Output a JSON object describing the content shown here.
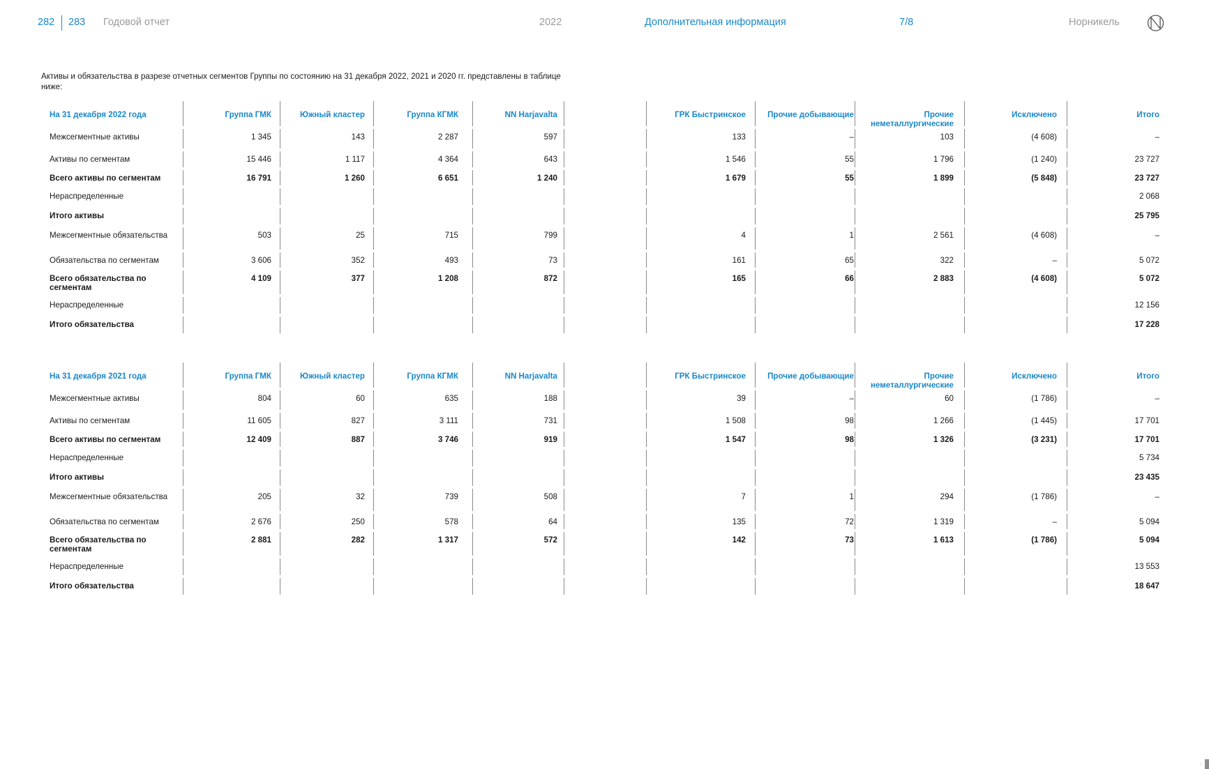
{
  "header": {
    "page_left": "282",
    "page_right": "283",
    "report": "Годовой отчет",
    "year": "2022",
    "section": "Дополнительная информация",
    "section_page": "7/8",
    "brand": "Норникель"
  },
  "intro": "Активы и обязательства в разрезе отчетных сегментов Группы по состоянию на 31 декабря 2022, 2021 и 2020 гг. представлены в таблице ниже:",
  "columns": [
    "Группа ГМК",
    "Южный кластер",
    "Группа КГМК",
    "NN Harjavalta",
    "",
    "ГРК Быстринское",
    "Прочие добывающие",
    "Прочие неметаллургические",
    "Исключено",
    "Итого"
  ],
  "tables": [
    {
      "title": "На 31 декабря 2022 года",
      "rows": [
        {
          "label": "Межсегментные активы",
          "bold": false,
          "values": [
            "1 345",
            "143",
            "2 287",
            "597",
            "",
            "133",
            "–",
            "103",
            "(4 608)",
            "–"
          ]
        },
        {
          "label": "Активы по сегментам",
          "bold": false,
          "values": [
            "15 446",
            "1 117",
            "4 364",
            "643",
            "",
            "1 546",
            "55",
            "1 796",
            "(1 240)",
            "23 727"
          ]
        },
        {
          "label": "Всего активы по сегментам",
          "bold": true,
          "values": [
            "16 791",
            "1 260",
            "6 651",
            "1 240",
            "",
            "1 679",
            "55",
            "1 899",
            "(5 848)",
            "23 727"
          ]
        },
        {
          "label": "Нераспределенные",
          "bold": false,
          "values": [
            "",
            "",
            "",
            "",
            "",
            "",
            "",
            "",
            "",
            "2 068"
          ]
        },
        {
          "label": "Итого активы",
          "bold": true,
          "values": [
            "",
            "",
            "",
            "",
            "",
            "",
            "",
            "",
            "",
            "25 795"
          ]
        },
        {
          "label": "Межсегментные обязательства",
          "bold": false,
          "values": [
            "503",
            "25",
            "715",
            "799",
            "",
            "4",
            "1",
            "2 561",
            "(4 608)",
            "–"
          ]
        },
        {
          "label": "Обязательства по сегментам",
          "bold": false,
          "values": [
            "3 606",
            "352",
            "493",
            "73",
            "",
            "161",
            "65",
            "322",
            "–",
            "5 072"
          ]
        },
        {
          "label": "Всего обязательства по сегментам",
          "bold": true,
          "values": [
            "4 109",
            "377",
            "1 208",
            "872",
            "",
            "165",
            "66",
            "2 883",
            "(4 608)",
            "5 072"
          ]
        },
        {
          "label": "Нераспределенные",
          "bold": false,
          "values": [
            "",
            "",
            "",
            "",
            "",
            "",
            "",
            "",
            "",
            "12 156"
          ]
        },
        {
          "label": "Итого обязательства",
          "bold": true,
          "values": [
            "",
            "",
            "",
            "",
            "",
            "",
            "",
            "",
            "",
            "17 228"
          ]
        }
      ]
    },
    {
      "title": "На 31 декабря 2021 года",
      "rows": [
        {
          "label": "Межсегментные активы",
          "bold": false,
          "values": [
            "804",
            "60",
            "635",
            "188",
            "",
            "39",
            "–",
            "60",
            "(1 786)",
            "–"
          ]
        },
        {
          "label": "Активы по сегментам",
          "bold": false,
          "values": [
            "11 605",
            "827",
            "3 111",
            "731",
            "",
            "1 508",
            "98",
            "1 266",
            "(1 445)",
            "17 701"
          ]
        },
        {
          "label": "Всего активы по сегментам",
          "bold": true,
          "values": [
            "12 409",
            "887",
            "3 746",
            "919",
            "",
            "1 547",
            "98",
            "1 326",
            "(3 231)",
            "17 701"
          ]
        },
        {
          "label": "Нераспределенные",
          "bold": false,
          "values": [
            "",
            "",
            "",
            "",
            "",
            "",
            "",
            "",
            "",
            "5 734"
          ]
        },
        {
          "label": "Итого активы",
          "bold": true,
          "values": [
            "",
            "",
            "",
            "",
            "",
            "",
            "",
            "",
            "",
            "23 435"
          ]
        },
        {
          "label": "Межсегментные обязательства",
          "bold": false,
          "values": [
            "205",
            "32",
            "739",
            "508",
            "",
            "7",
            "1",
            "294",
            "(1 786)",
            "–"
          ]
        },
        {
          "label": "Обязательства по сегментам",
          "bold": false,
          "values": [
            "2 676",
            "250",
            "578",
            "64",
            "",
            "135",
            "72",
            "1 319",
            "–",
            "5 094"
          ]
        },
        {
          "label": "Всего обязательства по сегментам",
          "bold": true,
          "values": [
            "2 881",
            "282",
            "1 317",
            "572",
            "",
            "142",
            "73",
            "1 613",
            "(1 786)",
            "5 094"
          ]
        },
        {
          "label": "Нераспределенные",
          "bold": false,
          "values": [
            "",
            "",
            "",
            "",
            "",
            "",
            "",
            "",
            "",
            "13 553"
          ]
        },
        {
          "label": "Итого обязательства",
          "bold": true,
          "values": [
            "",
            "",
            "",
            "",
            "",
            "",
            "",
            "",
            "",
            "18 647"
          ]
        }
      ]
    }
  ]
}
